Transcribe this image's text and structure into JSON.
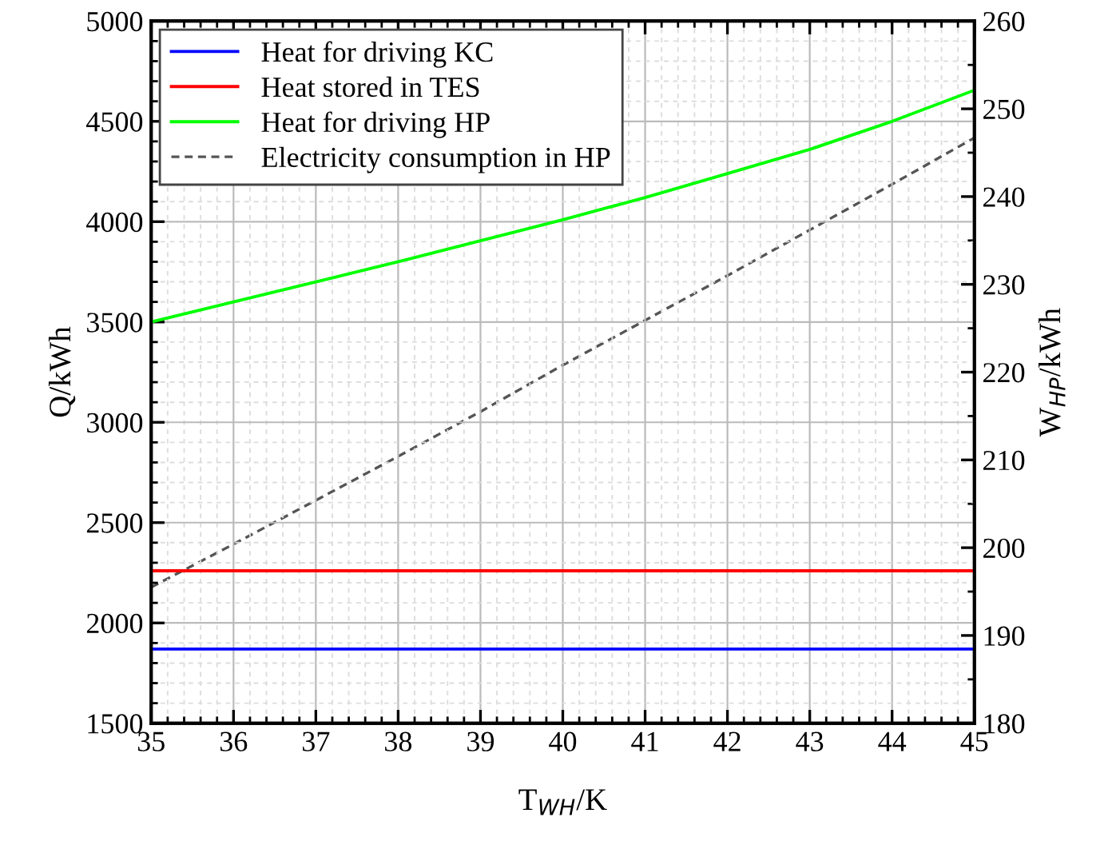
{
  "chart_data": {
    "type": "line",
    "xlabel": "T$_{WH}$/K",
    "ylabel": "Q/kWh",
    "y2label": "W$_{HP}$/kWh",
    "x": [
      35,
      36,
      37,
      38,
      39,
      40,
      41,
      42,
      43,
      44,
      45
    ],
    "series": [
      {
        "name": "Heat for driving KC",
        "color": "#0000ff",
        "values": [
          1870,
          1870,
          1870,
          1870,
          1870,
          1870,
          1870,
          1870,
          1870,
          1870,
          1870
        ]
      },
      {
        "name": "Heat stored in TES",
        "color": "#ff0000",
        "values": [
          2260,
          2260,
          2260,
          2260,
          2260,
          2260,
          2260,
          2260,
          2260,
          2260,
          2260
        ]
      },
      {
        "name": "Heat for driving HP",
        "color": "#00ff00",
        "values": [
          3500,
          3600,
          3700,
          3800,
          3905,
          4010,
          4120,
          4240,
          4360,
          4500,
          4655
        ]
      },
      {
        "name": "Electricity consumption in HP",
        "color": "#555555",
        "axis": "y2",
        "line_style": "dashed",
        "values": [
          195.5,
          200.4,
          205.4,
          210.4,
          215.5,
          220.8,
          225.9,
          231.0,
          236.2,
          241.4,
          246.7
        ]
      }
    ],
    "xlim": [
      35,
      45
    ],
    "xticks": [
      35,
      36,
      37,
      38,
      39,
      40,
      41,
      42,
      43,
      44,
      45
    ],
    "ylim": [
      1500,
      5000
    ],
    "yticks": [
      1500,
      2000,
      2500,
      3000,
      3500,
      4000,
      4500,
      5000
    ],
    "y2lim": [
      180,
      260
    ],
    "y2ticks": [
      180,
      190,
      200,
      210,
      220,
      230,
      240,
      250,
      260
    ],
    "grid": true,
    "legend": "top left",
    "line_style": "solid"
  }
}
